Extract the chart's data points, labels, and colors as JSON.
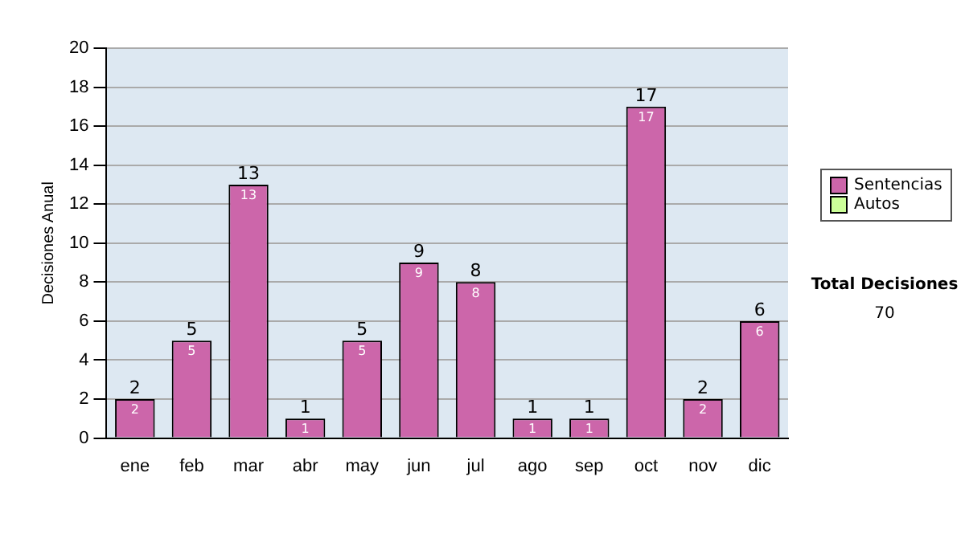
{
  "chart_data": {
    "type": "bar",
    "stacked": true,
    "ylabel": "Decisiones Anual",
    "categories": [
      "ene",
      "feb",
      "mar",
      "abr",
      "may",
      "jun",
      "jul",
      "ago",
      "sep",
      "oct",
      "nov",
      "dic"
    ],
    "series": [
      {
        "name": "Sentencias",
        "color": "#cc66aa",
        "values": [
          2,
          5,
          13,
          1,
          5,
          9,
          8,
          1,
          1,
          17,
          2,
          6
        ],
        "value_labels": [
          "2",
          "5",
          "13",
          "1",
          "5",
          "9",
          "8",
          "1",
          "1",
          "17",
          "2",
          "6"
        ]
      },
      {
        "name": "Autos",
        "color": "#ccff99",
        "values": [
          0,
          0,
          0,
          0,
          0,
          0,
          0,
          0,
          0,
          0,
          0,
          0
        ],
        "value_labels": [
          null,
          null,
          null,
          null,
          null,
          null,
          null,
          null,
          null,
          null,
          null,
          null
        ]
      }
    ],
    "ylim": [
      0,
      20
    ],
    "yticks": [
      0,
      2,
      4,
      6,
      8,
      10,
      12,
      14,
      16,
      18,
      20
    ],
    "grid": "y",
    "legend": "right",
    "totals": [
      "2",
      "5",
      "13",
      "1",
      "5",
      "9",
      "8",
      "1",
      "1",
      "17",
      "2",
      "6"
    ],
    "annotations": [
      "Total Decisiones",
      "70"
    ]
  }
}
